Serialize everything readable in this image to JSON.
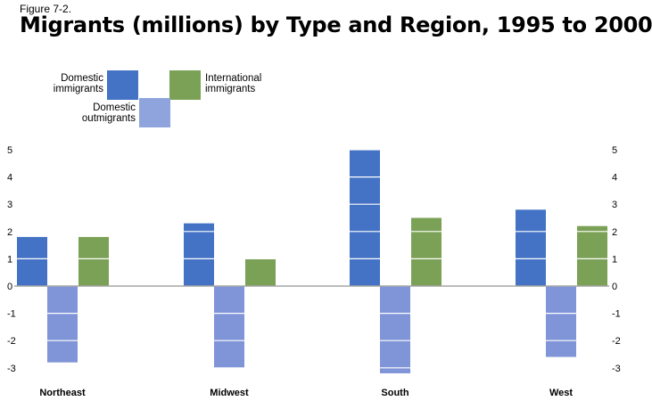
{
  "figure_label": "Figure 7-2.",
  "chart_data": {
    "type": "bar",
    "title": "Migrants (millions) by Type and Region, 1995 to 2000",
    "categories": [
      "Northeast",
      "Midwest",
      "South",
      "West"
    ],
    "series": [
      {
        "name": "Domestic immigrants",
        "values": [
          1.8,
          2.3,
          5.0,
          2.8
        ],
        "color": "#4472c4"
      },
      {
        "name": "Domestic outmigrants",
        "values": [
          -2.8,
          -3.0,
          -3.2,
          -2.6
        ],
        "color": "#8095d7"
      },
      {
        "name": "International immigrants",
        "values": [
          1.8,
          1.0,
          2.5,
          2.2
        ],
        "color": "#7aa155"
      }
    ],
    "ylim": [
      -3.3,
      5.2
    ],
    "yticks": [
      "5",
      "4",
      "3",
      "2",
      "1",
      "0",
      "-1",
      "-2",
      "-3"
    ],
    "ytick_values": [
      5,
      4,
      3,
      2,
      1,
      0,
      -1,
      -2,
      -3
    ],
    "xlabel": "",
    "ylabel": "",
    "grid": "white lines inside bars",
    "legend_position": "top-left"
  },
  "legend": {
    "domestic_immigrants_line1": "Domestic",
    "domestic_immigrants_line2": "immigrants",
    "international_immigrants_line1": "International",
    "international_immigrants_line2": "immigrants",
    "domestic_outmigrants_line1": "Domestic",
    "domestic_outmigrants_line2": "outmigrants"
  }
}
